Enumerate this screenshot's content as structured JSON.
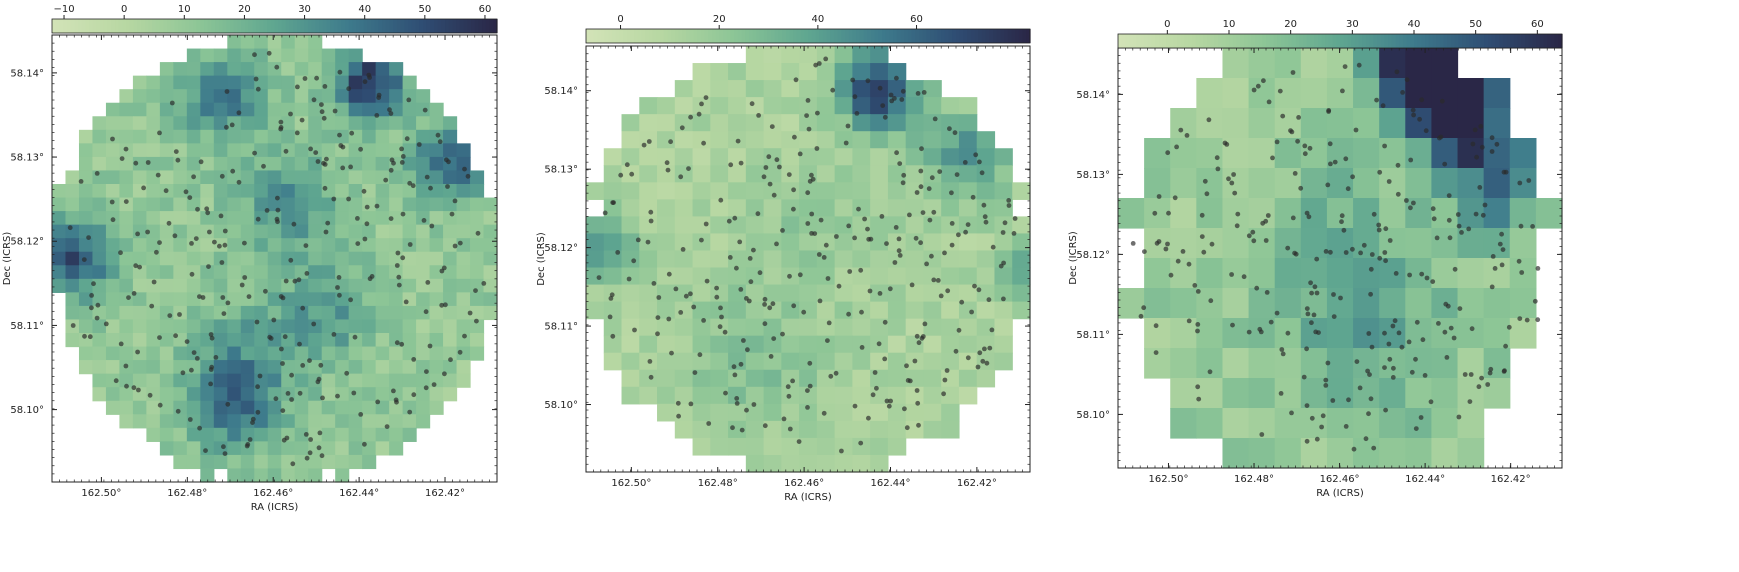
{
  "colors": {
    "colormap": [
      "#d2e3b7",
      "#b7d7a2",
      "#8cc596",
      "#5fa690",
      "#3e7b8c",
      "#2f4e74",
      "#2a2747"
    ],
    "points": "#2b2b2b"
  },
  "chart_data": [
    {
      "type": "heatmap",
      "title": "",
      "xlabel": "RA (ICRS)",
      "ylabel": "Dec (ICRS)",
      "xlim": [
        162.5115,
        162.4079
      ],
      "ylim": [
        58.0914,
        58.1445
      ],
      "x_ticks": [
        162.5,
        162.48,
        162.46,
        162.44,
        162.42
      ],
      "x_tick_labels": [
        "162.50°",
        "162.48°",
        "162.46°",
        "162.44°",
        "162.42°"
      ],
      "y_ticks": [
        58.1,
        58.11,
        58.12,
        58.13,
        58.14
      ],
      "y_tick_labels": [
        "58.10°",
        "58.11°",
        "58.12°",
        "58.13°",
        "58.14°"
      ],
      "colorbar": {
        "location": "top",
        "vmin": -12,
        "vmax": 62,
        "ticks": [
          -10,
          0,
          10,
          20,
          30,
          40,
          50,
          60
        ],
        "tick_labels": [
          "−10",
          "0",
          "10",
          "20",
          "30",
          "40",
          "50",
          "60"
        ]
      },
      "grid_size": [
        33,
        33
      ],
      "footprint_radius_cells": 16.6,
      "hotspots": [
        {
          "row": 3,
          "col": 23,
          "value": 58,
          "radius": 1.8
        },
        {
          "row": 4,
          "col": 12,
          "value": 38,
          "radius": 2.2
        },
        {
          "row": 9,
          "col": 29,
          "value": 42,
          "radius": 2.0
        },
        {
          "row": 16,
          "col": 1,
          "value": 50,
          "radius": 2.0
        },
        {
          "row": 12,
          "col": 17,
          "value": 32,
          "radius": 2.5
        },
        {
          "row": 27,
          "col": 13,
          "value": 40,
          "radius": 2.2
        },
        {
          "row": 20,
          "col": 20,
          "value": 28,
          "radius": 2.5
        },
        {
          "row": 23,
          "col": 14,
          "value": 26,
          "radius": 3.0
        }
      ],
      "base_value": 10,
      "n_points": 300,
      "seed": 11
    },
    {
      "type": "heatmap",
      "title": "",
      "xlabel": "RA (ICRS)",
      "ylabel": "Dec (ICRS)",
      "xlim": [
        162.5105,
        162.4077
      ],
      "ylim": [
        58.0914,
        58.1457
      ],
      "x_ticks": [
        162.5,
        162.48,
        162.46,
        162.44,
        162.42
      ],
      "x_tick_labels": [
        "162.50°",
        "162.48°",
        "162.46°",
        "162.44°",
        "162.42°"
      ],
      "y_ticks": [
        58.1,
        58.11,
        58.12,
        58.13,
        58.14
      ],
      "y_tick_labels": [
        "58.10°",
        "58.11°",
        "58.12°",
        "58.13°",
        "58.14°"
      ],
      "colorbar": {
        "location": "top",
        "vmin": -7,
        "vmax": 83,
        "ticks": [
          0,
          20,
          40,
          60
        ],
        "tick_labels": [
          "0",
          "20",
          "40",
          "60"
        ]
      },
      "grid_size": [
        25,
        25
      ],
      "footprint_radius_cells": 12.6,
      "hotspots": [
        {
          "row": 2,
          "col": 16,
          "value": 78,
          "radius": 1.6
        },
        {
          "row": 6,
          "col": 21,
          "value": 45,
          "radius": 1.8
        },
        {
          "row": 11,
          "col": 0,
          "value": 40,
          "radius": 1.6
        },
        {
          "row": 13,
          "col": 24,
          "value": 38,
          "radius": 1.2
        },
        {
          "row": 18,
          "col": 9,
          "value": 26,
          "radius": 3.0
        },
        {
          "row": 10,
          "col": 12,
          "value": 22,
          "radius": 2.5
        }
      ],
      "base_value": 12,
      "n_points": 300,
      "seed": 23
    },
    {
      "type": "heatmap",
      "title": "",
      "xlabel": "RA (ICRS)",
      "ylabel": "Dec (ICRS)",
      "xlim": [
        162.5118,
        162.408
      ],
      "ylim": [
        58.0933,
        58.1458
      ],
      "x_ticks": [
        162.5,
        162.48,
        162.46,
        162.44,
        162.42
      ],
      "x_tick_labels": [
        "162.50°",
        "162.48°",
        "162.46°",
        "162.44°",
        "162.42°"
      ],
      "y_ticks": [
        58.1,
        58.11,
        58.12,
        58.13,
        58.14
      ],
      "y_tick_labels": [
        "58.10°",
        "58.11°",
        "58.12°",
        "58.13°",
        "58.14°"
      ],
      "colorbar": {
        "location": "top",
        "vmin": -8,
        "vmax": 64,
        "ticks": [
          0,
          10,
          20,
          30,
          40,
          50,
          60
        ],
        "tick_labels": [
          "0",
          "10",
          "20",
          "30",
          "40",
          "50",
          "60"
        ]
      },
      "grid_size": [
        14,
        17
      ],
      "footprint_radius_cells": 8.0,
      "hotspots": [
        {
          "row": 0,
          "col": 11,
          "value": 62,
          "radius": 1.2
        },
        {
          "row": 1,
          "col": 12,
          "value": 58,
          "radius": 1.2
        },
        {
          "row": 2,
          "col": 13,
          "value": 42,
          "radius": 1.3
        },
        {
          "row": 4,
          "col": 14,
          "value": 38,
          "radius": 1.2
        },
        {
          "row": 9,
          "col": 9,
          "value": 26,
          "radius": 2.2
        },
        {
          "row": 6,
          "col": 8,
          "value": 22,
          "radius": 2.0
        }
      ],
      "base_value": 12,
      "n_points": 280,
      "seed": 37
    }
  ]
}
